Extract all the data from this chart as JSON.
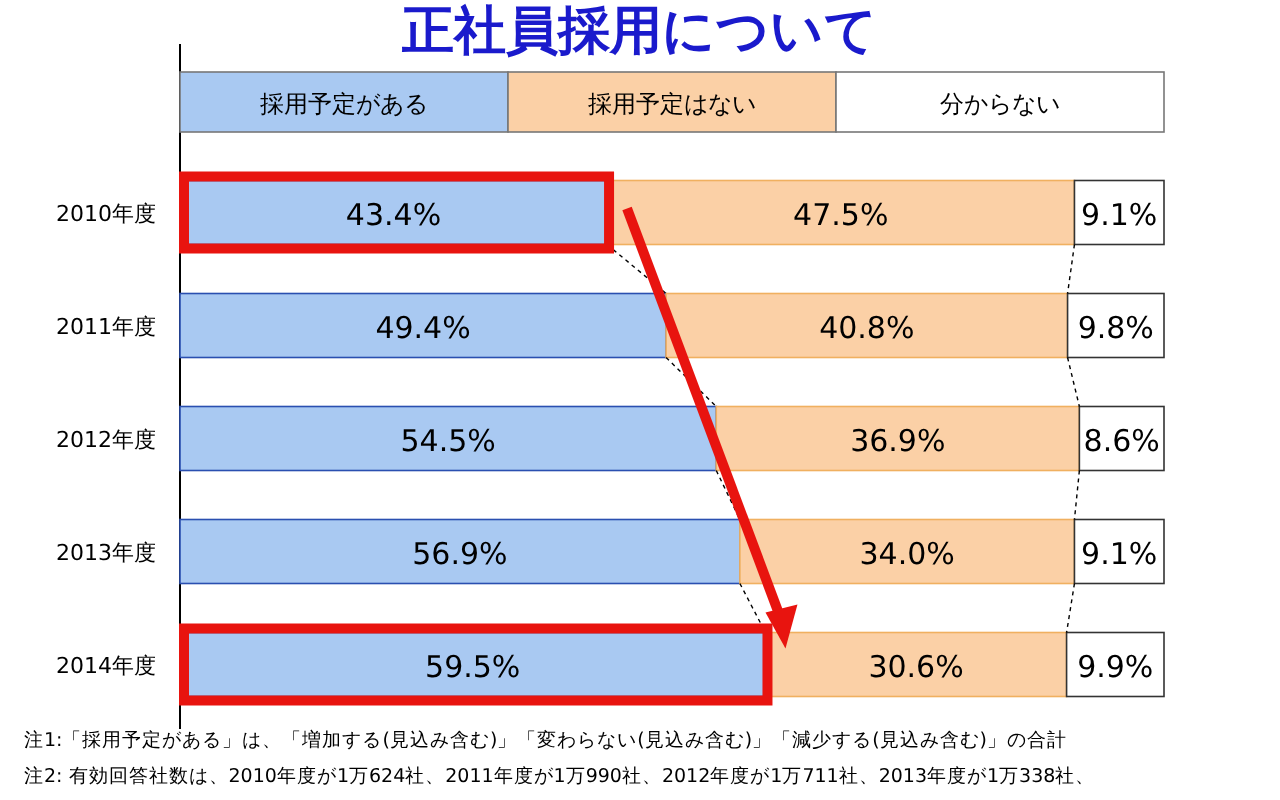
{
  "chart_data": {
    "type": "bar",
    "title": "正社員採用について",
    "orientation": "horizontal",
    "stacked": true,
    "legend": "top",
    "tick_labels": "y",
    "xlim": [
      0,
      100
    ],
    "categories": [
      "2010年度",
      "2011年度",
      "2012年度",
      "2013年度",
      "2014年度"
    ],
    "series": [
      {
        "name": "採用予定がある",
        "color": "#a9c9f2",
        "values": [
          43.4,
          49.4,
          54.5,
          56.9,
          59.5
        ],
        "value_labels": [
          "43.4%",
          "49.4%",
          "54.5%",
          "56.9%",
          "59.5%"
        ]
      },
      {
        "name": "採用予定はない",
        "color": "#fbd0a6",
        "values": [
          47.5,
          40.8,
          36.9,
          34.0,
          30.6
        ],
        "value_labels": [
          "47.5%",
          "40.8%",
          "36.9%",
          "34.0%",
          "30.6%"
        ]
      },
      {
        "name": "分からない",
        "color": "#ffffff",
        "values": [
          9.1,
          9.8,
          8.6,
          9.1,
          9.9
        ],
        "value_labels": [
          "9.1%",
          "9.8%",
          "8.6%",
          "9.1%",
          "9.9%"
        ]
      }
    ],
    "annotations": [
      "注1:「採用予定がある」は、「増加する(見込み含む)」「変わらない(見込み含む)」「減少する(見込み含む)」の合計",
      "注2: 有効回答社数は、2010年度が1万624社、2011年度が1万990社、2012年度が1万711社、2013年度が1万338社、"
    ]
  }
}
